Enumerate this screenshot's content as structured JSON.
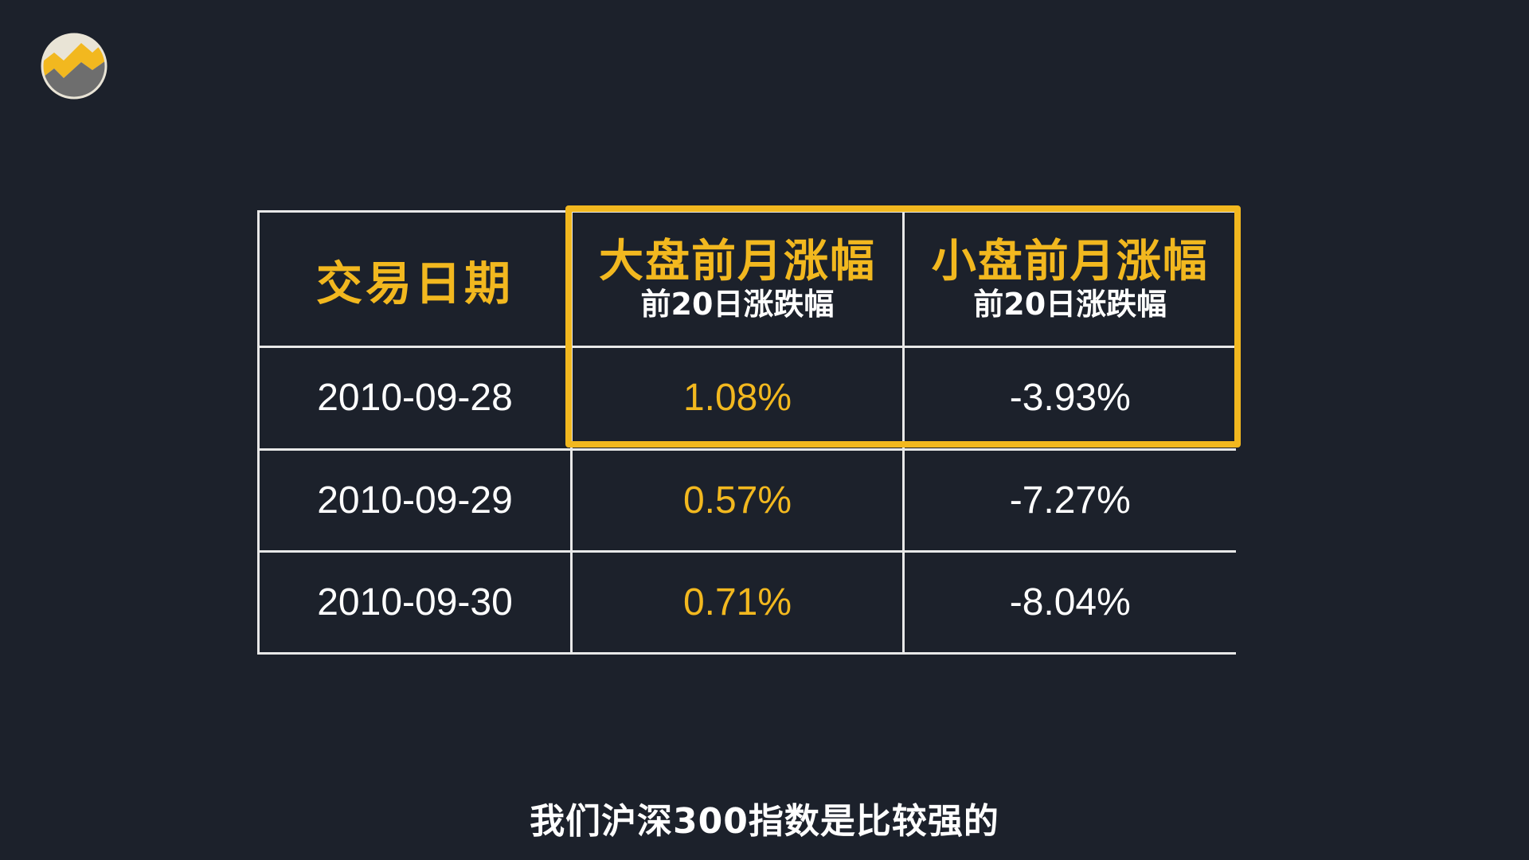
{
  "table": {
    "headers": [
      {
        "main": "交易日期",
        "sub": ""
      },
      {
        "main": "大盘前月涨幅",
        "sub": "前20日涨跌幅"
      },
      {
        "main": "小盘前月涨幅",
        "sub": "前20日涨跌幅"
      }
    ],
    "rows": [
      {
        "date": "2010-09-28",
        "big": "1.08%",
        "small": "-3.93%"
      },
      {
        "date": "2010-09-29",
        "big": "0.57%",
        "small": "-7.27%"
      },
      {
        "date": "2010-09-30",
        "big": "0.71%",
        "small": "-8.04%"
      }
    ]
  },
  "subtitle": "我们沪深300指数是比较强的",
  "icons": {
    "logo": "channel-logo-icon"
  },
  "colors": {
    "background": "#1c212b",
    "accent": "#f2b81f",
    "text": "#ffffff",
    "grid": "#e8e8e8"
  }
}
